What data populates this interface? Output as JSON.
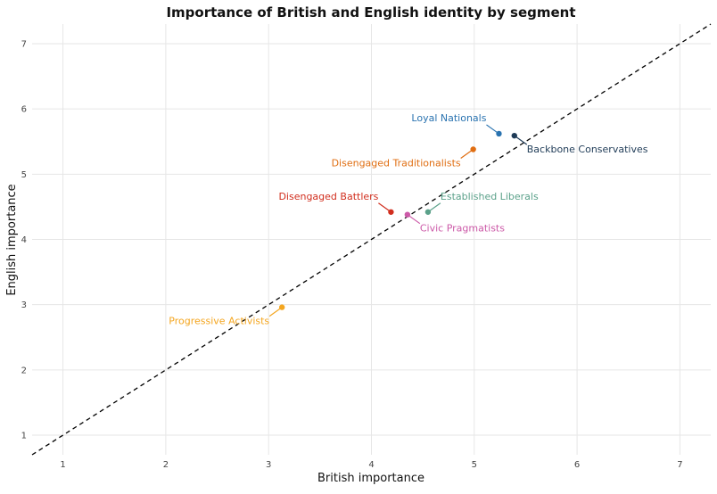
{
  "chart_data": {
    "type": "scatter",
    "title": "Importance of British and English identity by segment",
    "xlabel": "British importance",
    "ylabel": "English importance",
    "xlim": [
      0.7,
      7.3
    ],
    "ylim": [
      0.7,
      7.3
    ],
    "xticks": [
      1,
      2,
      3,
      4,
      5,
      6,
      7
    ],
    "yticks": [
      1,
      2,
      3,
      4,
      5,
      6,
      7
    ],
    "grid": true,
    "legend": "none",
    "reference_line": {
      "style": "dashed",
      "slope": 1,
      "intercept": 0,
      "color": "#000000"
    },
    "points": [
      {
        "label": "Loyal Nationals",
        "x": 5.24,
        "y": 5.62,
        "color": "#2a73b0",
        "label_anchor": "upper-left"
      },
      {
        "label": "Backbone Conservatives",
        "x": 5.39,
        "y": 5.59,
        "color": "#1f3b57",
        "label_anchor": "lower-right"
      },
      {
        "label": "Disengaged Traditionalists",
        "x": 4.99,
        "y": 5.38,
        "color": "#e06e12",
        "label_anchor": "lower-left"
      },
      {
        "label": "Disengaged Battlers",
        "x": 4.19,
        "y": 4.42,
        "color": "#d12e1e",
        "label_anchor": "upper-left"
      },
      {
        "label": "Established Liberals",
        "x": 4.55,
        "y": 4.42,
        "color": "#5ba18a",
        "label_anchor": "upper-right"
      },
      {
        "label": "Civic Pragmatists",
        "x": 4.35,
        "y": 4.38,
        "color": "#cc5aa8",
        "label_anchor": "lower-right"
      },
      {
        "label": "Progressive Activists",
        "x": 3.13,
        "y": 2.96,
        "color": "#f4a620",
        "label_anchor": "lower-left"
      }
    ]
  }
}
